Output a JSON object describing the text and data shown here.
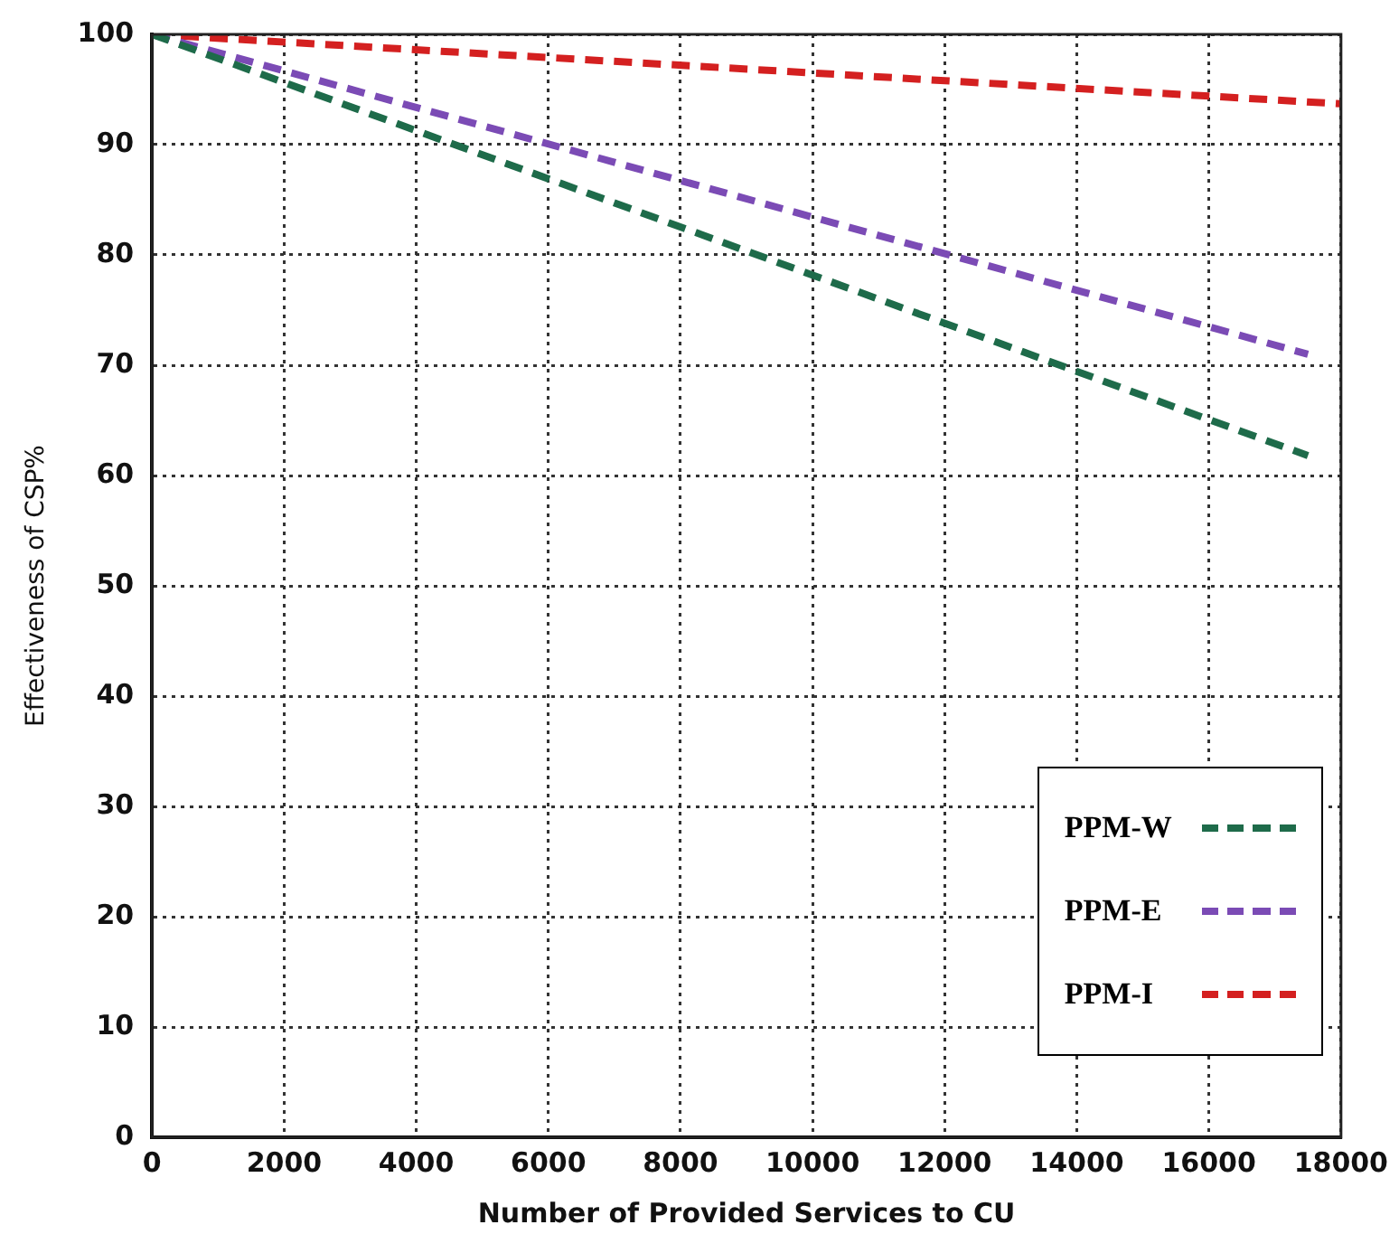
{
  "chart_data": {
    "type": "line",
    "xlabel": "Number of Provided Services to CU",
    "ylabel": "Effectiveness of CSP%",
    "xlim": [
      0,
      18000
    ],
    "xticks": [
      0,
      2000,
      4000,
      6000,
      8000,
      10000,
      12000,
      14000,
      16000,
      18000
    ],
    "ylim": [
      0,
      100
    ],
    "yticks": [
      0,
      10,
      20,
      30,
      40,
      50,
      60,
      70,
      80,
      90,
      100
    ],
    "grid": true,
    "legend": "bottom right",
    "line_style": "dashed",
    "marker": "none",
    "series": [
      {
        "name": "PPM-W",
        "color": "#1e6b4a",
        "x": [
          0,
          17500
        ],
        "values": [
          100,
          61.8
        ]
      },
      {
        "name": "PPM-E",
        "color": "#7b4bb5",
        "x": [
          0,
          17500
        ],
        "values": [
          100,
          71
        ]
      },
      {
        "name": "PPM-I",
        "color": "#d42020",
        "x": [
          0,
          18000
        ],
        "values": [
          100,
          93.7
        ]
      }
    ]
  }
}
